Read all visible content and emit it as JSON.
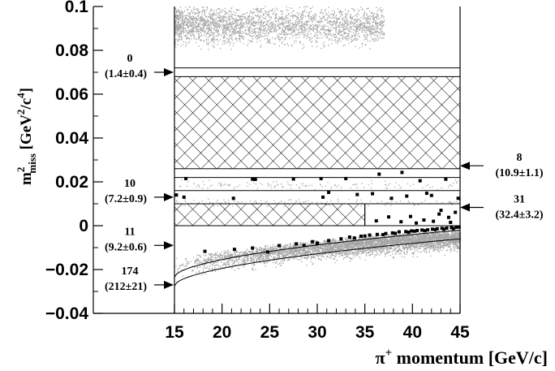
{
  "chart_data": {
    "type": "scatter",
    "xlabel_prefix": "π",
    "xlabel_sup": "+",
    "xlabel_rest": " momentum [GeV/c]",
    "ylabel_main": "m",
    "ylabel_sup": "2",
    "ylabel_sub": "miss",
    "ylabel_rest": " [GeV",
    "ylabel_sup2": "2",
    "ylabel_rest2": "/c",
    "ylabel_sup3": "4",
    "ylabel_end": "]",
    "xlim": [
      15,
      45
    ],
    "ylim": [
      -0.04,
      0.1
    ],
    "x_ticks": [
      15,
      20,
      25,
      30,
      35,
      40,
      45
    ],
    "x_tick_labels": [
      "15",
      "20",
      "25",
      "30",
      "35",
      "40",
      "45"
    ],
    "y_ticks": [
      -0.04,
      -0.02,
      0,
      0.02,
      0.04,
      0.06,
      0.08,
      0.1
    ],
    "y_tick_labels": [
      "−0.04",
      "−0.02",
      "0",
      "0.02",
      "0.04",
      "0.06",
      "0.08",
      "0.1"
    ],
    "hatched_boxes": [
      {
        "x": [
          15,
          45
        ],
        "y": [
          0.026,
          0.068
        ]
      },
      {
        "x": [
          15,
          35
        ],
        "y": [
          0.0,
          0.01
        ]
      }
    ],
    "region_lines_y": [
      0.072,
      0.022,
      0.016,
      0.01,
      0.0
    ],
    "region_labels": [
      {
        "count": "0",
        "estimate": "(1.4±0.4)",
        "side": "left",
        "y": 0.07
      },
      {
        "count": "10",
        "estimate": "(7.2±0.9)",
        "side": "left",
        "y": 0.013
      },
      {
        "count": "11",
        "estimate": "(9.2±0.6)",
        "side": "left",
        "y": -0.009
      },
      {
        "count": "174",
        "estimate": "(212±21)",
        "side": "left",
        "y": -0.027
      },
      {
        "count": "8",
        "estimate": "(10.9±1.1)",
        "side": "right",
        "y": 0.024
      },
      {
        "count": "31",
        "estimate": "(32.4±3.2)",
        "side": "right",
        "y": 0.005
      }
    ],
    "signal_points": [
      [
        16.2,
        0.0215
      ],
      [
        23.2,
        0.0212
      ],
      [
        23.5,
        0.0211
      ],
      [
        30.4,
        0.0215
      ],
      [
        36.5,
        0.0235
      ],
      [
        38.9,
        0.0243
      ],
      [
        33.0,
        0.0215
      ],
      [
        27.5,
        0.0213
      ],
      [
        40.8,
        0.0205
      ],
      [
        43.5,
        0.0212
      ],
      [
        15.2,
        0.014
      ],
      [
        16.0,
        0.013
      ],
      [
        21.2,
        0.0125
      ],
      [
        30.6,
        0.013
      ],
      [
        31.2,
        0.0152
      ],
      [
        35.8,
        0.0146
      ],
      [
        39.4,
        0.0135
      ],
      [
        41.5,
        0.0148
      ],
      [
        42.0,
        0.0138
      ],
      [
        44.8,
        0.0125
      ],
      [
        37.8,
        0.0125
      ],
      [
        34.2,
        0.0142
      ],
      [
        18.2,
        -0.0117
      ],
      [
        21.3,
        -0.0108
      ],
      [
        23.2,
        -0.0102
      ],
      [
        26.0,
        -0.0091
      ],
      [
        27.8,
        -0.0083
      ],
      [
        29.5,
        -0.0073
      ],
      [
        24.8,
        -0.012
      ],
      [
        31.2,
        -0.0068
      ],
      [
        32.5,
        -0.006
      ],
      [
        33.4,
        -0.0052
      ],
      [
        34.6,
        -0.0048
      ],
      [
        35.5,
        -0.0043
      ],
      [
        36.3,
        -0.004
      ],
      [
        37.2,
        -0.0036
      ],
      [
        37.9,
        -0.0033
      ],
      [
        38.6,
        -0.0028
      ],
      [
        39.3,
        -0.0027
      ],
      [
        39.9,
        -0.0024
      ],
      [
        40.5,
        -0.0022
      ],
      [
        41.0,
        -0.002
      ],
      [
        41.6,
        -0.0019
      ],
      [
        42.1,
        -0.0016
      ],
      [
        42.6,
        -0.0014
      ],
      [
        43.1,
        -0.0012
      ],
      [
        43.6,
        -0.0011
      ],
      [
        44.1,
        -0.0009
      ],
      [
        44.6,
        -0.0007
      ],
      [
        44.9,
        -0.0006
      ],
      [
        38.2,
        -0.0035
      ],
      [
        36.9,
        -0.0041
      ],
      [
        35.0,
        -0.0047
      ],
      [
        33.9,
        -0.0056
      ],
      [
        39.6,
        -0.003
      ],
      [
        40.2,
        -0.0025
      ],
      [
        41.3,
        -0.0023
      ],
      [
        42.4,
        -0.0018
      ],
      [
        43.3,
        -0.0016
      ],
      [
        44.3,
        -0.0013
      ],
      [
        30.0,
        -0.008
      ],
      [
        28.6,
        -0.009
      ],
      [
        37.5,
        0.004
      ],
      [
        39.8,
        0.0042
      ],
      [
        41.2,
        0.0026
      ],
      [
        42.8,
        0.0053
      ],
      [
        43.8,
        0.0038
      ],
      [
        44.5,
        0.0061
      ],
      [
        40.4,
        0.0012
      ],
      [
        42.2,
        0.002
      ],
      [
        36.2,
        0.0022
      ],
      [
        38.8,
        0.0018
      ],
      [
        44.0,
        0.0015
      ],
      [
        43.0,
        0.007
      ]
    ]
  }
}
